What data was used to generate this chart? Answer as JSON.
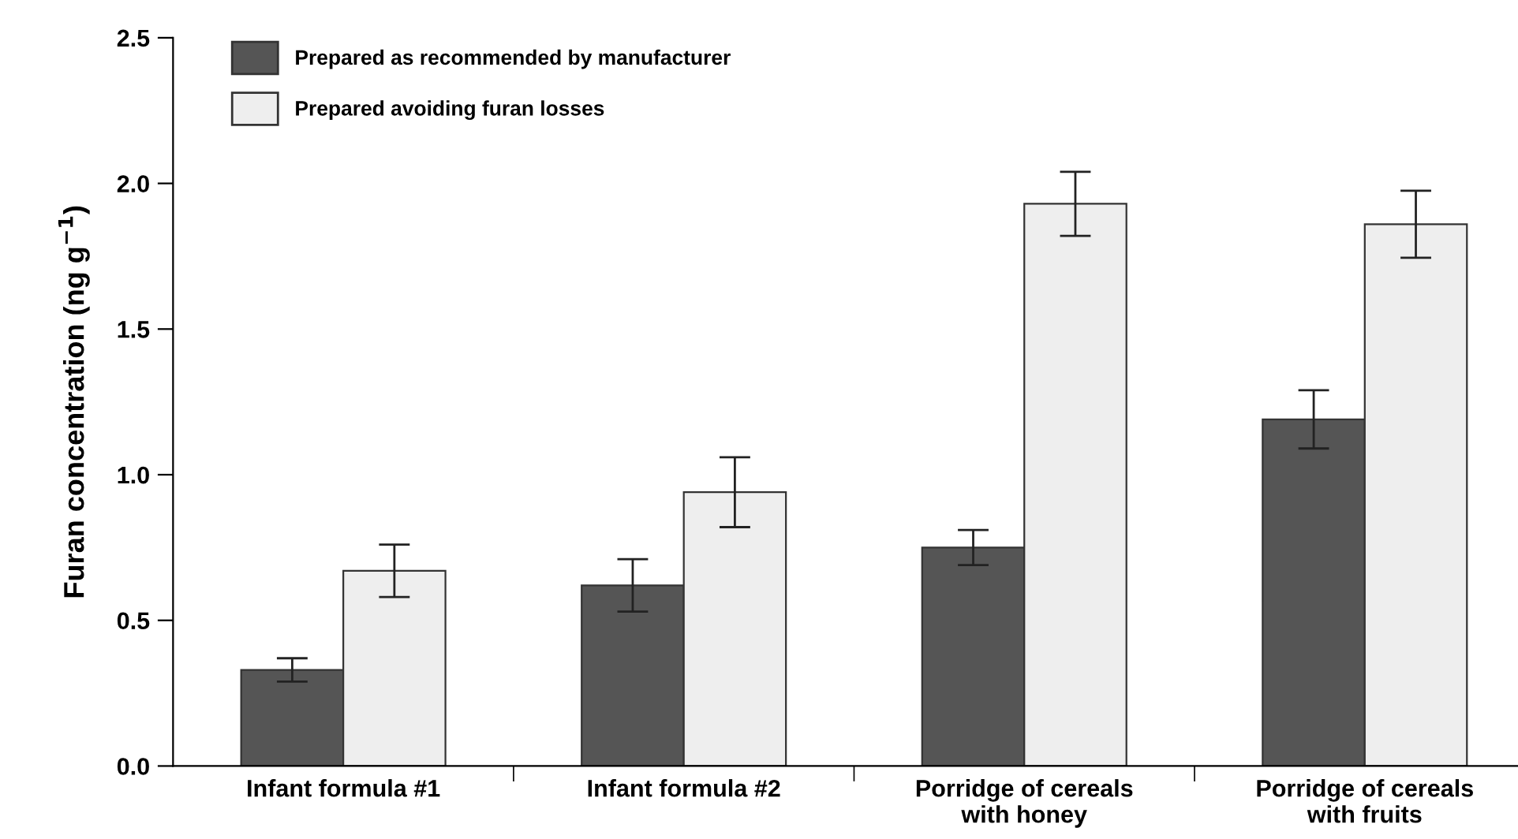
{
  "chart_data": {
    "type": "bar",
    "ylabel": "Furan concentration (ng g$^{−1}$)",
    "categories": [
      "Infant formula #1",
      "Infant formula #2",
      "Porridge of cereals\nwith honey",
      "Porridge of cereals\nwith fruits"
    ],
    "series": [
      {
        "name": "Prepared as recommended by manufacturer",
        "color": "#555555",
        "values": [
          0.33,
          0.62,
          0.75,
          1.19
        ],
        "errors": [
          0.04,
          0.09,
          0.06,
          0.1
        ]
      },
      {
        "name": "Prepared avoiding furan losses",
        "color": "#eeeeee",
        "values": [
          0.67,
          0.94,
          1.93,
          1.86
        ],
        "errors": [
          0.09,
          0.12,
          0.11,
          0.115
        ]
      }
    ],
    "ylim": [
      0,
      2.5
    ],
    "yticks": [
      {
        "value": 0,
        "label": "0.0"
      },
      {
        "value": 0.5,
        "label": "0.5"
      },
      {
        "value": 1,
        "label": "1.0"
      },
      {
        "value": 1.5,
        "label": "1.5"
      },
      {
        "value": 2,
        "label": "2.0"
      },
      {
        "value": 2.5,
        "label": "2.5"
      }
    ],
    "grid": false,
    "legend": "top left"
  }
}
